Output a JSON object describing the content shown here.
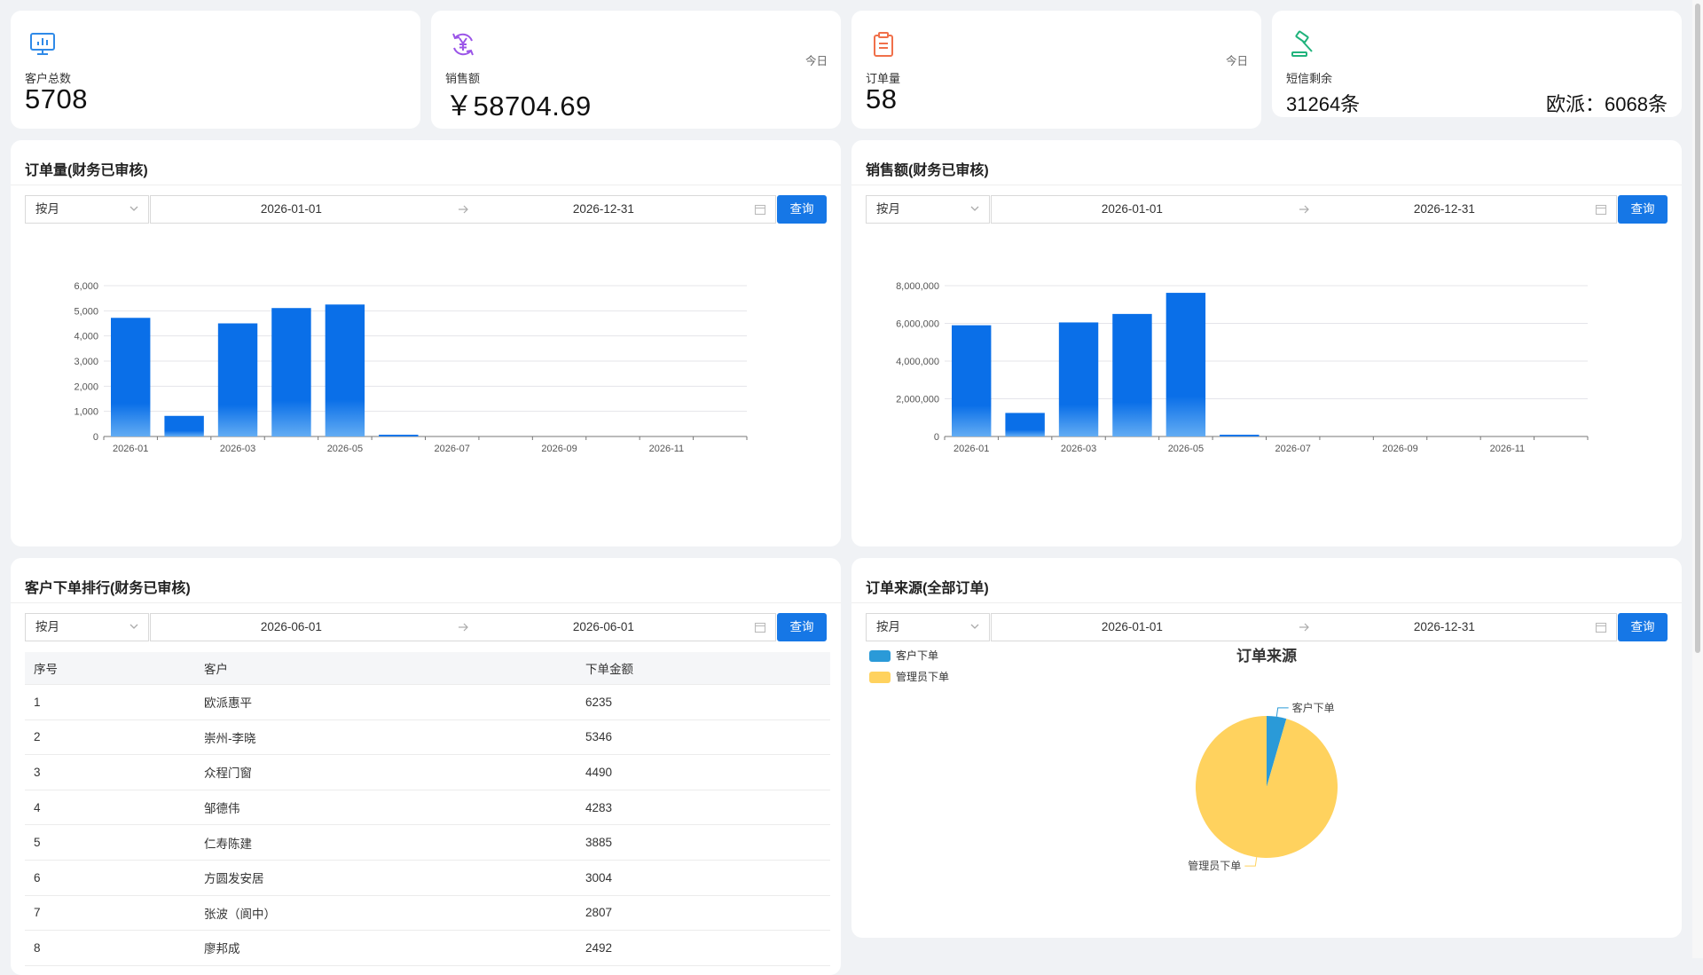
{
  "stats": [
    {
      "label": "客户总数",
      "value": "5708",
      "icon": "monitor-chart-icon",
      "color": "#2f8ae8"
    },
    {
      "label": "销售额",
      "value": "￥58704.69",
      "today": "今日",
      "icon": "yuan-cycle-icon",
      "color": "#9b55e8"
    },
    {
      "label": "订单量",
      "value": "58",
      "today": "今日",
      "icon": "clipboard-icon",
      "color": "#f0704a"
    },
    {
      "label": "短信剩余",
      "value": "31264条",
      "extra": "欧派：6068条",
      "icon": "gavel-icon",
      "color": "#21b37c"
    }
  ],
  "orders_panel": {
    "title": "订单量(财务已审核)",
    "select": "按月",
    "start": "2026-01-01",
    "end": "2026-12-31",
    "query": "查询"
  },
  "sales_panel": {
    "title": "销售额(财务已审核)",
    "select": "按月",
    "start": "2026-01-01",
    "end": "2026-12-31",
    "query": "查询"
  },
  "ranking_panel": {
    "title": "客户下单排行(财务已审核)",
    "select": "按月",
    "start": "2026-06-01",
    "end": "2026-06-01",
    "query": "查询",
    "columns": [
      "序号",
      "客户",
      "下单金额"
    ],
    "rows": [
      [
        "1",
        "欧派惠平",
        "6235"
      ],
      [
        "2",
        "崇州-李晓",
        "5346"
      ],
      [
        "3",
        "众程门窗",
        "4490"
      ],
      [
        "4",
        "邹德伟",
        "4283"
      ],
      [
        "5",
        "仁寿陈建",
        "3885"
      ],
      [
        "6",
        "方圆发安居",
        "3004"
      ],
      [
        "7",
        "张波（阆中）",
        "2807"
      ],
      [
        "8",
        "廖邦成",
        "2492"
      ]
    ]
  },
  "source_panel": {
    "title": "订单来源(全部订单)",
    "select": "按月",
    "start": "2026-01-01",
    "end": "2026-12-31",
    "query": "查询"
  },
  "chart_data": [
    {
      "type": "bar",
      "categories": [
        "2026-01",
        "2026-02",
        "2026-03",
        "2026-04",
        "2026-05",
        "2026-06",
        "2026-07",
        "2026-08",
        "2026-09",
        "2026-10",
        "2026-11",
        "2026-12"
      ],
      "tick_labels": [
        "2026-01",
        "2026-03",
        "2026-05",
        "2026-07",
        "2026-09",
        "2026-11"
      ],
      "values": [
        4720,
        820,
        4500,
        5110,
        5250,
        58,
        0,
        0,
        0,
        0,
        0,
        0
      ],
      "yticks": [
        "0",
        "1,000",
        "2,000",
        "3,000",
        "4,000",
        "5,000",
        "6,000"
      ],
      "ylim": [
        0,
        6000
      ],
      "color": "#0a6fe8"
    },
    {
      "type": "bar",
      "categories": [
        "2026-01",
        "2026-02",
        "2026-03",
        "2026-04",
        "2026-05",
        "2026-06",
        "2026-07",
        "2026-08",
        "2026-09",
        "2026-10",
        "2026-11",
        "2026-12"
      ],
      "tick_labels": [
        "2026-01",
        "2026-03",
        "2026-05",
        "2026-07",
        "2026-09",
        "2026-11"
      ],
      "values": [
        5900000,
        1250000,
        6050000,
        6500000,
        7620000,
        58704.69,
        0,
        0,
        0,
        0,
        0,
        0
      ],
      "yticks": [
        "0",
        "2,000,000",
        "4,000,000",
        "6,000,000",
        "8,000,000"
      ],
      "ylim": [
        0,
        8000000
      ],
      "color": "#0a6fe8"
    },
    {
      "type": "pie",
      "title": "订单来源",
      "labels": [
        "客户下单",
        "管理员下单"
      ],
      "values": [
        4.5,
        95.5
      ],
      "colors": [
        "#2a9ad8",
        "#ffd25e"
      ]
    }
  ]
}
